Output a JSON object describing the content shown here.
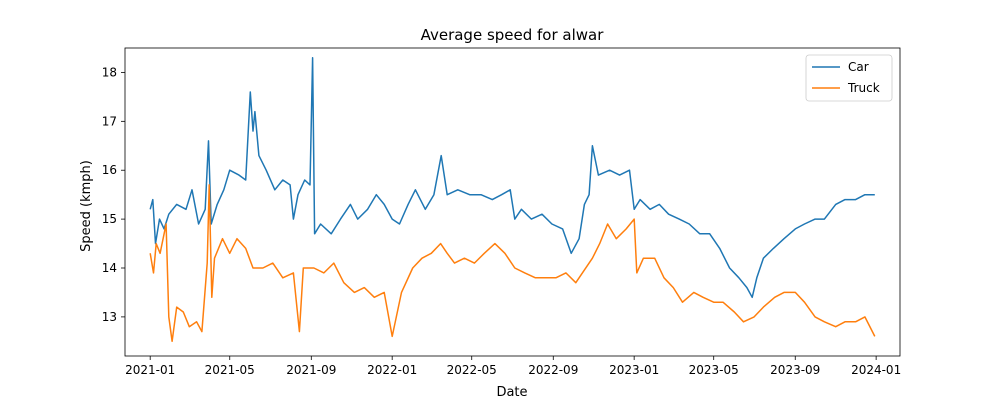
{
  "chart_data": {
    "type": "line",
    "title": "Average speed for alwar",
    "xlabel": "Date",
    "ylabel": "Speed (kmph)",
    "xlim": [
      "2020-11-24",
      "2024-02-06"
    ],
    "ylim": [
      12.2,
      18.5
    ],
    "x_ticks": [
      "2021-01",
      "2021-05",
      "2021-09",
      "2022-01",
      "2022-05",
      "2022-09",
      "2023-01",
      "2023-05",
      "2023-09",
      "2024-01"
    ],
    "y_ticks": [
      13,
      14,
      15,
      16,
      17,
      18
    ],
    "grid": false,
    "legend_position": "top-right",
    "series": [
      {
        "name": "Car",
        "color": "#1f77b4",
        "points": [
          [
            "2021-01-01",
            15.2
          ],
          [
            "2021-01-05",
            15.4
          ],
          [
            "2021-01-09",
            14.5
          ],
          [
            "2021-01-15",
            15.0
          ],
          [
            "2021-01-22",
            14.8
          ],
          [
            "2021-01-29",
            15.1
          ],
          [
            "2021-02-10",
            15.3
          ],
          [
            "2021-02-24",
            15.2
          ],
          [
            "2021-03-05",
            15.6
          ],
          [
            "2021-03-15",
            14.9
          ],
          [
            "2021-03-25",
            15.2
          ],
          [
            "2021-03-30",
            16.6
          ],
          [
            "2021-04-03",
            14.9
          ],
          [
            "2021-04-12",
            15.3
          ],
          [
            "2021-04-22",
            15.6
          ],
          [
            "2021-05-01",
            16.0
          ],
          [
            "2021-05-15",
            15.9
          ],
          [
            "2021-05-25",
            15.8
          ],
          [
            "2021-06-01",
            17.6
          ],
          [
            "2021-06-05",
            16.8
          ],
          [
            "2021-06-08",
            17.2
          ],
          [
            "2021-06-14",
            16.3
          ],
          [
            "2021-06-25",
            16.0
          ],
          [
            "2021-07-08",
            15.6
          ],
          [
            "2021-07-20",
            15.8
          ],
          [
            "2021-07-31",
            15.7
          ],
          [
            "2021-08-05",
            15.0
          ],
          [
            "2021-08-12",
            15.5
          ],
          [
            "2021-08-22",
            15.8
          ],
          [
            "2021-08-30",
            15.7
          ],
          [
            "2021-09-03",
            18.3
          ],
          [
            "2021-09-06",
            14.7
          ],
          [
            "2021-09-15",
            14.9
          ],
          [
            "2021-10-01",
            14.7
          ],
          [
            "2021-10-15",
            15.0
          ],
          [
            "2021-10-30",
            15.3
          ],
          [
            "2021-11-10",
            15.0
          ],
          [
            "2021-11-25",
            15.2
          ],
          [
            "2021-12-08",
            15.5
          ],
          [
            "2021-12-20",
            15.3
          ],
          [
            "2022-01-01",
            15.0
          ],
          [
            "2022-01-12",
            14.9
          ],
          [
            "2022-01-25",
            15.3
          ],
          [
            "2022-02-05",
            15.6
          ],
          [
            "2022-02-20",
            15.2
          ],
          [
            "2022-03-05",
            15.5
          ],
          [
            "2022-03-16",
            16.3
          ],
          [
            "2022-03-25",
            15.5
          ],
          [
            "2022-04-10",
            15.6
          ],
          [
            "2022-04-28",
            15.5
          ],
          [
            "2022-05-15",
            15.5
          ],
          [
            "2022-06-01",
            15.4
          ],
          [
            "2022-06-15",
            15.5
          ],
          [
            "2022-06-28",
            15.6
          ],
          [
            "2022-07-05",
            15.0
          ],
          [
            "2022-07-15",
            15.2
          ],
          [
            "2022-07-30",
            15.0
          ],
          [
            "2022-08-15",
            15.1
          ],
          [
            "2022-08-30",
            14.9
          ],
          [
            "2022-09-15",
            14.8
          ],
          [
            "2022-09-28",
            14.3
          ],
          [
            "2022-10-10",
            14.6
          ],
          [
            "2022-10-18",
            15.3
          ],
          [
            "2022-10-25",
            15.5
          ],
          [
            "2022-10-30",
            16.5
          ],
          [
            "2022-11-08",
            15.9
          ],
          [
            "2022-11-25",
            16.0
          ],
          [
            "2022-12-10",
            15.9
          ],
          [
            "2022-12-25",
            16.0
          ],
          [
            "2023-01-01",
            15.2
          ],
          [
            "2023-01-10",
            15.4
          ],
          [
            "2023-01-25",
            15.2
          ],
          [
            "2023-02-08",
            15.3
          ],
          [
            "2023-02-22",
            15.1
          ],
          [
            "2023-03-10",
            15.0
          ],
          [
            "2023-03-25",
            14.9
          ],
          [
            "2023-04-10",
            14.7
          ],
          [
            "2023-04-25",
            14.7
          ],
          [
            "2023-05-10",
            14.4
          ],
          [
            "2023-05-25",
            14.0
          ],
          [
            "2023-06-08",
            13.8
          ],
          [
            "2023-06-20",
            13.6
          ],
          [
            "2023-06-28",
            13.4
          ],
          [
            "2023-07-05",
            13.8
          ],
          [
            "2023-07-15",
            14.2
          ],
          [
            "2023-07-30",
            14.4
          ],
          [
            "2023-08-15",
            14.6
          ],
          [
            "2023-09-01",
            14.8
          ],
          [
            "2023-09-15",
            14.9
          ],
          [
            "2023-10-01",
            15.0
          ],
          [
            "2023-10-15",
            15.0
          ],
          [
            "2023-11-01",
            15.3
          ],
          [
            "2023-11-15",
            15.4
          ],
          [
            "2023-12-01",
            15.4
          ],
          [
            "2023-12-15",
            15.5
          ],
          [
            "2023-12-30",
            15.5
          ]
        ]
      },
      {
        "name": "Truck",
        "color": "#ff7f0e",
        "points": [
          [
            "2021-01-01",
            14.3
          ],
          [
            "2021-01-06",
            13.9
          ],
          [
            "2021-01-10",
            14.5
          ],
          [
            "2021-01-16",
            14.3
          ],
          [
            "2021-01-25",
            14.9
          ],
          [
            "2021-01-29",
            13.0
          ],
          [
            "2021-02-03",
            12.5
          ],
          [
            "2021-02-10",
            13.2
          ],
          [
            "2021-02-20",
            13.1
          ],
          [
            "2021-03-01",
            12.8
          ],
          [
            "2021-03-12",
            12.9
          ],
          [
            "2021-03-20",
            12.7
          ],
          [
            "2021-03-28",
            14.1
          ],
          [
            "2021-03-31",
            15.7
          ],
          [
            "2021-04-04",
            13.4
          ],
          [
            "2021-04-08",
            14.2
          ],
          [
            "2021-04-20",
            14.6
          ],
          [
            "2021-05-01",
            14.3
          ],
          [
            "2021-05-12",
            14.6
          ],
          [
            "2021-05-25",
            14.4
          ],
          [
            "2021-06-05",
            14.0
          ],
          [
            "2021-06-20",
            14.0
          ],
          [
            "2021-07-05",
            14.1
          ],
          [
            "2021-07-20",
            13.8
          ],
          [
            "2021-08-05",
            13.9
          ],
          [
            "2021-08-14",
            12.7
          ],
          [
            "2021-08-20",
            14.0
          ],
          [
            "2021-09-05",
            14.0
          ],
          [
            "2021-09-20",
            13.9
          ],
          [
            "2021-10-05",
            14.1
          ],
          [
            "2021-10-20",
            13.7
          ],
          [
            "2021-11-05",
            13.5
          ],
          [
            "2021-11-20",
            13.6
          ],
          [
            "2021-12-05",
            13.4
          ],
          [
            "2021-12-20",
            13.5
          ],
          [
            "2022-01-01",
            12.6
          ],
          [
            "2022-01-15",
            13.5
          ],
          [
            "2022-02-01",
            14.0
          ],
          [
            "2022-02-15",
            14.2
          ],
          [
            "2022-03-01",
            14.3
          ],
          [
            "2022-03-15",
            14.5
          ],
          [
            "2022-03-25",
            14.3
          ],
          [
            "2022-04-05",
            14.1
          ],
          [
            "2022-04-20",
            14.2
          ],
          [
            "2022-05-05",
            14.1
          ],
          [
            "2022-05-20",
            14.3
          ],
          [
            "2022-06-05",
            14.5
          ],
          [
            "2022-06-20",
            14.3
          ],
          [
            "2022-07-05",
            14.0
          ],
          [
            "2022-07-20",
            13.9
          ],
          [
            "2022-08-05",
            13.8
          ],
          [
            "2022-08-20",
            13.8
          ],
          [
            "2022-09-05",
            13.8
          ],
          [
            "2022-09-20",
            13.9
          ],
          [
            "2022-10-05",
            13.7
          ],
          [
            "2022-10-15",
            13.9
          ],
          [
            "2022-10-30",
            14.2
          ],
          [
            "2022-11-10",
            14.5
          ],
          [
            "2022-11-22",
            14.9
          ],
          [
            "2022-12-05",
            14.6
          ],
          [
            "2022-12-20",
            14.8
          ],
          [
            "2023-01-01",
            15.0
          ],
          [
            "2023-01-05",
            13.9
          ],
          [
            "2023-01-15",
            14.2
          ],
          [
            "2023-02-01",
            14.2
          ],
          [
            "2023-02-15",
            13.8
          ],
          [
            "2023-03-01",
            13.6
          ],
          [
            "2023-03-15",
            13.3
          ],
          [
            "2023-04-01",
            13.5
          ],
          [
            "2023-04-15",
            13.4
          ],
          [
            "2023-05-01",
            13.3
          ],
          [
            "2023-05-15",
            13.3
          ],
          [
            "2023-06-01",
            13.1
          ],
          [
            "2023-06-15",
            12.9
          ],
          [
            "2023-07-01",
            13.0
          ],
          [
            "2023-07-15",
            13.2
          ],
          [
            "2023-08-01",
            13.4
          ],
          [
            "2023-08-15",
            13.5
          ],
          [
            "2023-09-01",
            13.5
          ],
          [
            "2023-09-15",
            13.3
          ],
          [
            "2023-10-01",
            13.0
          ],
          [
            "2023-10-15",
            12.9
          ],
          [
            "2023-11-01",
            12.8
          ],
          [
            "2023-11-15",
            12.9
          ],
          [
            "2023-12-01",
            12.9
          ],
          [
            "2023-12-15",
            13.0
          ],
          [
            "2023-12-30",
            12.6
          ]
        ]
      }
    ]
  }
}
